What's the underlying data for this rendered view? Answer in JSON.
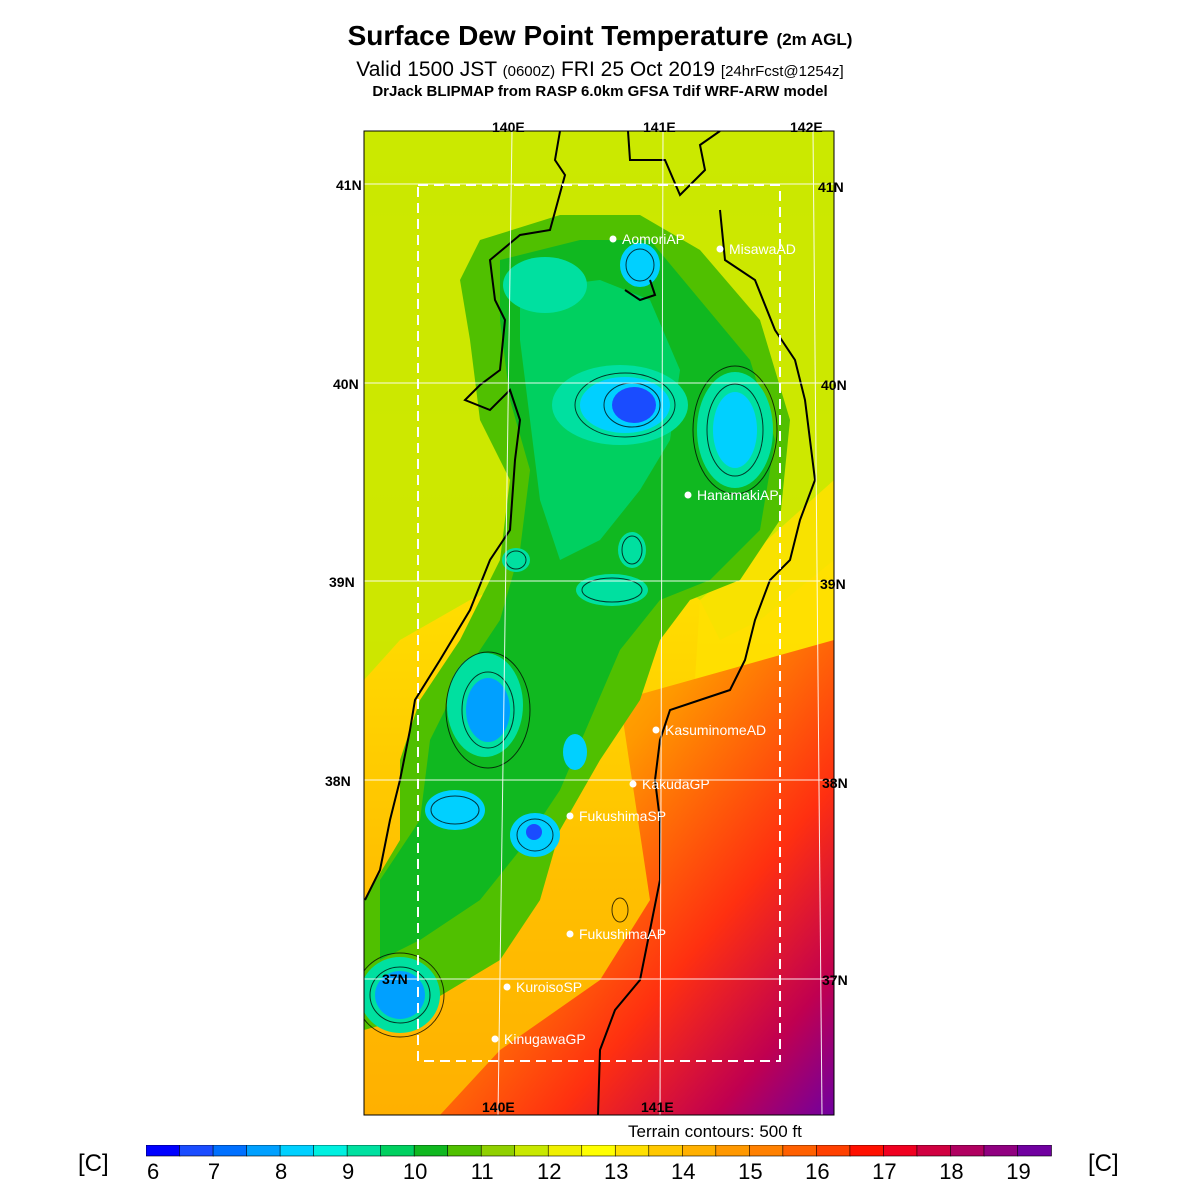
{
  "title": {
    "main": "Surface Dew Point Temperature",
    "level": "(2m AGL)",
    "valid_prefix": "Valid 1500 JST",
    "valid_utc": "(0600Z)",
    "valid_date": "FRI 25 Oct 2019",
    "forecast": "[24hrFcst@1254z]",
    "model": "DrJack BLIPMAP from RASP 6.0km GFSA Tdif WRF-ARW model"
  },
  "axes": {
    "lon_top": [
      "140E",
      "141E",
      "142E"
    ],
    "lon_bottom": [
      "140E",
      "141E"
    ],
    "lat_left": [
      "41N",
      "40N",
      "39N",
      "38N",
      "37N"
    ],
    "lat_right": [
      "41N",
      "40N",
      "39N",
      "38N",
      "37N"
    ]
  },
  "stations": [
    "AomoriAP",
    "MisawaAD",
    "HanamakiAP",
    "KasuminomeAD",
    "KakudaGP",
    "FukushimaSP",
    "FukushimaAP",
    "KuroisoSP",
    "KinugawaGP"
  ],
  "terrain_note": "Terrain contours: 500 ft",
  "colorbar": {
    "unit": "[C]",
    "labels": [
      "6",
      "7",
      "8",
      "9",
      "10",
      "11",
      "12",
      "13",
      "14",
      "15",
      "16",
      "17",
      "18",
      "19"
    ],
    "colors": [
      "#0000ff",
      "#1a4cff",
      "#0070ff",
      "#00a0ff",
      "#00d0ff",
      "#00f0e0",
      "#00e0a0",
      "#00d060",
      "#10b820",
      "#50c000",
      "#90d000",
      "#c8e800",
      "#f0f000",
      "#ffff00",
      "#ffe000",
      "#ffc800",
      "#ffb000",
      "#ff9800",
      "#ff8000",
      "#ff6000",
      "#ff4000",
      "#ff1000",
      "#f00020",
      "#d00040",
      "#b00060",
      "#900080",
      "#7000a0"
    ]
  }
}
